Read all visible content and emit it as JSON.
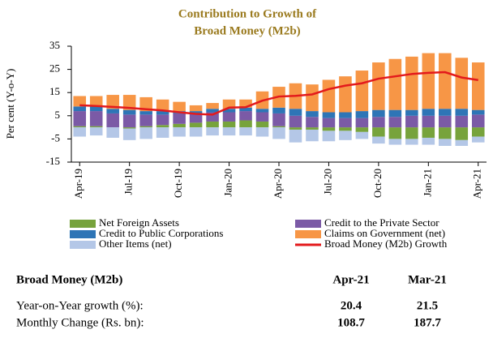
{
  "chart_data": {
    "type": "stacked_bar_line",
    "title_lines": [
      "Contribution to Growth of",
      "Broad Money (M2b)"
    ],
    "ylabel": "Per cent (Y-o-Y)",
    "categories": [
      "Apr-19",
      null,
      null,
      "Jul-19",
      null,
      null,
      "Oct-19",
      null,
      null,
      "Jan-20",
      null,
      null,
      "Apr-20",
      null,
      null,
      "Jul-20",
      null,
      null,
      "Oct-20",
      null,
      null,
      "Jan-21",
      null,
      null,
      "Apr-21"
    ],
    "ylim": [
      -15,
      35
    ],
    "yticks": [
      -15,
      -5,
      5,
      15,
      25,
      35
    ],
    "grid": false,
    "series": [
      {
        "name": "Net Foreign Assets",
        "color": "#77a33c",
        "kind": "bar",
        "values": [
          0.5,
          0.5,
          0,
          -0.5,
          0.5,
          1,
          1.5,
          2,
          2.5,
          2.5,
          3,
          2.5,
          0.5,
          -1,
          -1,
          -1.5,
          -1.5,
          -2,
          -4,
          -5,
          -5,
          -4.5,
          -5,
          -5.5,
          -4
        ]
      },
      {
        "name": "Credit to the Private Sector",
        "color": "#7b5aa6",
        "kind": "bar",
        "values": [
          6.5,
          6.5,
          6,
          5.5,
          5,
          4.5,
          4.5,
          4,
          4,
          4,
          4,
          4,
          5.5,
          5,
          4.5,
          4,
          4,
          4,
          4.5,
          4.5,
          5,
          5,
          5,
          5,
          5.5
        ]
      },
      {
        "name": "Credit to Public Corporations",
        "color": "#2e75b6",
        "kind": "bar",
        "values": [
          2,
          2,
          2,
          2,
          1.5,
          1.5,
          1,
          1,
          1.5,
          1.5,
          1.5,
          1.5,
          2.5,
          3,
          2.5,
          2.5,
          2.5,
          3,
          3,
          3,
          2.5,
          3,
          3,
          3,
          2
        ]
      },
      {
        "name": "Claims on Government (net)",
        "color": "#f79646",
        "kind": "bar",
        "values": [
          4.5,
          4.5,
          6,
          6.5,
          6,
          5,
          4,
          2.5,
          2.5,
          4,
          3.5,
          7.5,
          9,
          11,
          11.5,
          14,
          15.5,
          17.5,
          20.5,
          22,
          23,
          24,
          24,
          22,
          20.5
        ]
      },
      {
        "name": "Other Items (net)",
        "color": "#b4c7e7",
        "kind": "bar",
        "values": [
          -4,
          -3.5,
          -4.5,
          -5,
          -5,
          -4.5,
          -4,
          -4,
          -3.5,
          -3.5,
          -3.5,
          -4,
          -5,
          -5.5,
          -5,
          -4.5,
          -4,
          -3,
          -3,
          -2.5,
          -2.5,
          -3,
          -3,
          -2.5,
          -2.5
        ]
      },
      {
        "name": "Broad Money (M2b) Growth",
        "color": "#e31a1c",
        "kind": "line",
        "values": [
          9.5,
          9.2,
          8.8,
          8.4,
          7.8,
          7.3,
          6.5,
          5.8,
          5.5,
          8.5,
          8.7,
          11.5,
          13.3,
          13.6,
          14.2,
          16.5,
          18,
          19,
          21,
          22,
          23,
          23.5,
          23.8,
          21.5,
          20.4
        ]
      }
    ]
  },
  "table": {
    "header": "Broad Money (M2b)",
    "columns": [
      "Apr-21",
      "Mar-21"
    ],
    "rows": [
      {
        "label": "Year-on-Year growth (%):",
        "values": [
          20.4,
          21.5
        ]
      },
      {
        "label": "Monthly Change (Rs. bn):",
        "values": [
          108.7,
          187.7
        ]
      }
    ]
  }
}
